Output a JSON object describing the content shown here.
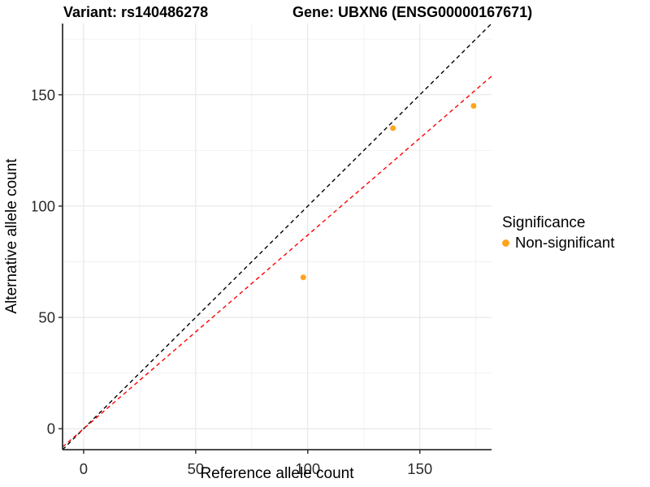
{
  "header": {
    "variant_title": "Variant: rs140486278",
    "gene_title": "Gene: UBXN6 (ENSG00000167671)"
  },
  "legend": {
    "title": "Significance",
    "items": [
      {
        "label": "Non-significant",
        "color": "#FFA420",
        "marker": "circle-icon"
      }
    ]
  },
  "chart_data": {
    "type": "scatter",
    "xlabel": "Reference allele count",
    "ylabel": "Alternative allele count",
    "xlim": [
      -9.4,
      182
    ],
    "ylim": [
      -9.4,
      182
    ],
    "x_ticks": [
      0,
      50,
      100,
      150
    ],
    "y_ticks": [
      0,
      50,
      100,
      150
    ],
    "x_minor_ticks": [
      25,
      75,
      125,
      175
    ],
    "y_minor_ticks": [
      25,
      75,
      125,
      175
    ],
    "grid": true,
    "legend_position": "right",
    "series": [
      {
        "name": "Non-significant",
        "color": "#FFA420",
        "points": [
          {
            "x": 98,
            "y": 68
          },
          {
            "x": 138,
            "y": 135
          },
          {
            "x": 174,
            "y": 145
          }
        ]
      }
    ],
    "reference_lines": [
      {
        "name": "identity-line",
        "slope": 1,
        "intercept": 0,
        "color": "#000000",
        "dash": "dashed"
      },
      {
        "name": "regression-line",
        "slope": 0.87,
        "intercept": 0,
        "color": "#FF0000",
        "dash": "dashed"
      }
    ],
    "colors": {
      "grid_major": "#E3E3E3",
      "grid_minor": "#F1F1F1",
      "axis_line": "#333333",
      "tick_label": "#2B2B2B"
    }
  }
}
